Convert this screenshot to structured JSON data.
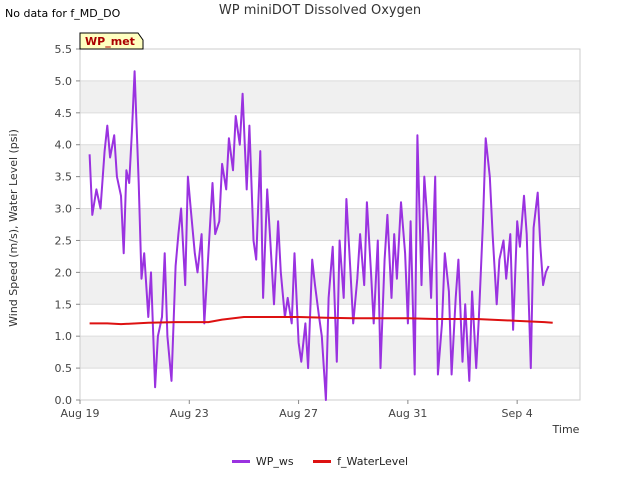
{
  "header": {
    "nodata_note": "No data for f_MD_DO",
    "title": "WP miniDOT Dissolved Oxygen"
  },
  "badge": {
    "label": "WP_met"
  },
  "colors": {
    "ws": "#9a32e0",
    "water": "#dd1111",
    "band": "#f0f0f0",
    "grid": "#dcdcdc"
  },
  "chart_data": {
    "type": "line",
    "title": "WP miniDOT Dissolved Oxygen",
    "xlabel": "Time",
    "ylabel": "Wind Speed (m/s), Water Level (psi)",
    "ylim": [
      0,
      5.5
    ],
    "xlim_days": [
      0,
      18.3
    ],
    "y_ticks": [
      "0.0",
      "0.5",
      "1.0",
      "1.5",
      "2.0",
      "2.5",
      "3.0",
      "3.5",
      "4.0",
      "4.5",
      "5.0",
      "5.5"
    ],
    "x_ticks": [
      {
        "day": 0,
        "label": "Aug 19"
      },
      {
        "day": 4,
        "label": "Aug 23"
      },
      {
        "day": 8,
        "label": "Aug 27"
      },
      {
        "day": 12,
        "label": "Aug 31"
      },
      {
        "day": 16,
        "label": "Sep 4"
      }
    ],
    "series": [
      {
        "name": "WP_ws",
        "x": [
          0.35,
          0.45,
          0.6,
          0.75,
          0.9,
          1.0,
          1.1,
          1.25,
          1.35,
          1.5,
          1.6,
          1.7,
          1.8,
          1.9,
          2.0,
          2.15,
          2.25,
          2.35,
          2.5,
          2.6,
          2.75,
          2.85,
          3.0,
          3.1,
          3.2,
          3.35,
          3.5,
          3.6,
          3.7,
          3.85,
          3.95,
          4.05,
          4.2,
          4.3,
          4.45,
          4.55,
          4.7,
          4.85,
          4.95,
          5.1,
          5.2,
          5.35,
          5.45,
          5.6,
          5.7,
          5.85,
          5.95,
          6.1,
          6.2,
          6.35,
          6.45,
          6.6,
          6.7,
          6.85,
          6.95,
          7.1,
          7.25,
          7.35,
          7.5,
          7.6,
          7.75,
          7.85,
          8.0,
          8.1,
          8.25,
          8.35,
          8.5,
          8.6,
          8.75,
          8.85,
          9.0,
          9.1,
          9.25,
          9.4,
          9.5,
          9.65,
          9.75,
          9.9,
          10.0,
          10.15,
          10.25,
          10.4,
          10.5,
          10.65,
          10.75,
          10.9,
          11.0,
          11.15,
          11.25,
          11.4,
          11.5,
          11.6,
          11.75,
          11.9,
          12.0,
          12.1,
          12.25,
          12.35,
          12.5,
          12.6,
          12.75,
          12.85,
          13.0,
          13.1,
          13.25,
          13.35,
          13.5,
          13.6,
          13.75,
          13.85,
          14.0,
          14.1,
          14.25,
          14.35,
          14.5,
          14.6,
          14.75,
          14.85,
          15.0,
          15.1,
          15.25,
          15.35,
          15.5,
          15.6,
          15.75,
          15.85,
          16.0,
          16.1,
          16.25,
          16.35,
          16.5,
          16.6,
          16.75,
          16.85,
          16.95,
          17.05,
          17.15
        ],
        "values": [
          3.85,
          2.9,
          3.3,
          3.0,
          3.9,
          4.3,
          3.8,
          4.15,
          3.5,
          3.2,
          2.3,
          3.6,
          3.4,
          4.2,
          5.15,
          3.4,
          1.9,
          2.3,
          1.3,
          2.0,
          0.2,
          1.0,
          1.3,
          2.3,
          1.0,
          0.3,
          2.1,
          2.6,
          3.0,
          1.8,
          3.5,
          3.0,
          2.3,
          2.0,
          2.6,
          1.2,
          2.3,
          3.4,
          2.6,
          2.8,
          3.7,
          3.3,
          4.1,
          3.6,
          4.45,
          4.0,
          4.8,
          3.3,
          4.3,
          2.5,
          2.2,
          3.9,
          1.6,
          3.3,
          2.6,
          1.5,
          2.8,
          2.0,
          1.3,
          1.6,
          1.2,
          2.3,
          0.9,
          0.6,
          1.2,
          0.5,
          2.2,
          1.8,
          1.3,
          1.0,
          0.0,
          1.6,
          2.4,
          0.6,
          2.5,
          1.6,
          3.15,
          2.0,
          1.2,
          1.9,
          2.6,
          1.8,
          3.1,
          2.0,
          1.2,
          2.5,
          0.5,
          2.2,
          2.9,
          1.6,
          2.6,
          1.9,
          3.1,
          2.3,
          1.2,
          2.8,
          0.4,
          4.15,
          1.8,
          3.5,
          2.6,
          1.6,
          3.5,
          0.4,
          1.2,
          2.3,
          1.7,
          0.4,
          1.6,
          2.2,
          0.6,
          1.5,
          0.3,
          1.7,
          0.5,
          1.3,
          2.8,
          4.1,
          3.5,
          2.6,
          1.5,
          2.2,
          2.5,
          1.9,
          2.6,
          1.1,
          2.8,
          2.4,
          3.2,
          2.6,
          0.5,
          2.7,
          3.25,
          2.4,
          1.8,
          2.0,
          2.1
        ]
      },
      {
        "name": "f_WaterLevel",
        "x": [
          0.35,
          1.0,
          1.5,
          2.5,
          3.5,
          4.2,
          4.7,
          5.2,
          6.0,
          7.0,
          8.0,
          9.0,
          10.0,
          11.0,
          12.0,
          13.0,
          14.0,
          14.5,
          15.0,
          15.5,
          16.0,
          16.5,
          17.0,
          17.3
        ],
        "values": [
          1.2,
          1.2,
          1.19,
          1.21,
          1.22,
          1.22,
          1.22,
          1.26,
          1.3,
          1.3,
          1.3,
          1.29,
          1.28,
          1.28,
          1.28,
          1.27,
          1.27,
          1.27,
          1.26,
          1.25,
          1.24,
          1.23,
          1.22,
          1.21
        ]
      }
    ]
  }
}
